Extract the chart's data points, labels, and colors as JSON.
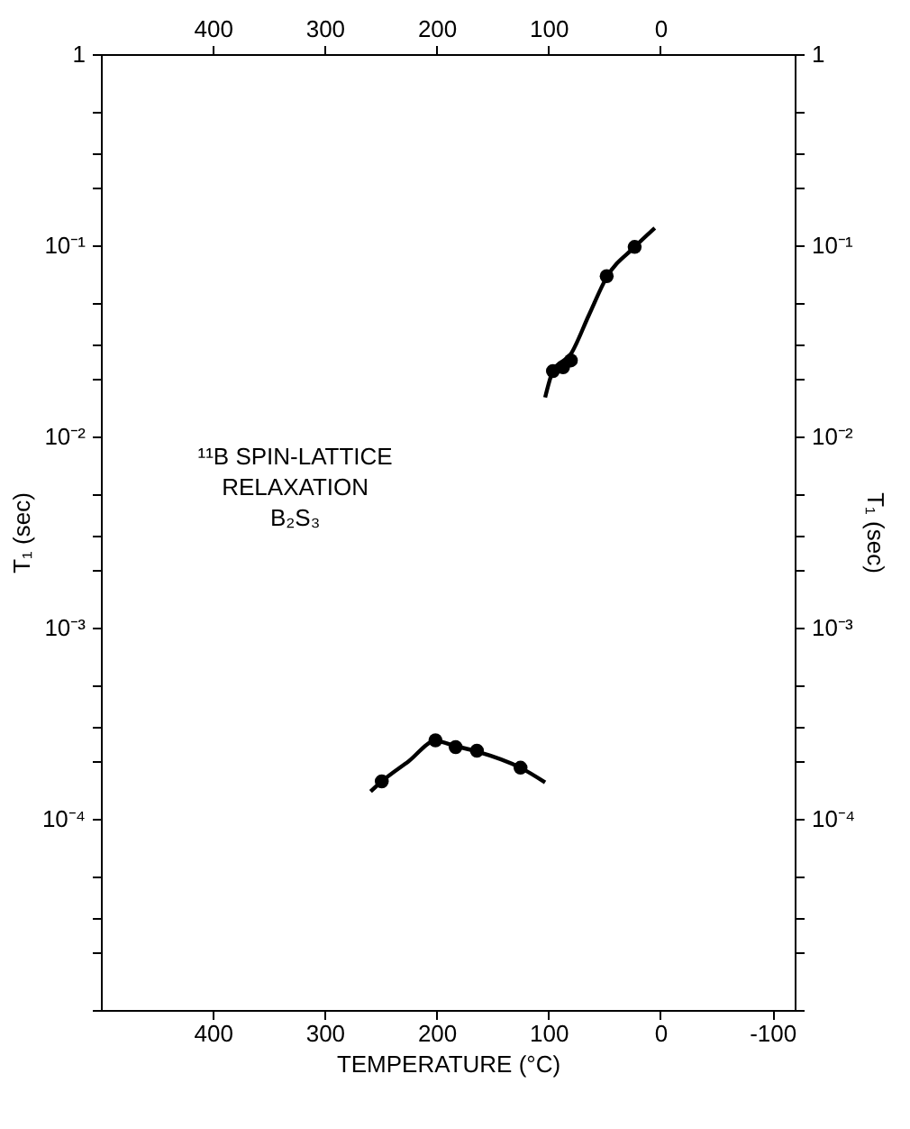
{
  "chart_data": {
    "type": "scatter",
    "xlabel": "TEMPERATURE (°C)",
    "ylabel": "T₁ (sec)",
    "y2label": "T₁ (sec)",
    "annotations": [
      "¹¹B SPIN-LATTICE\nRELAXATION\nB₂S₃"
    ],
    "xlim": [
      500,
      -120
    ],
    "xticks": [
      400,
      300,
      200,
      100,
      0,
      -100
    ],
    "x2lim": [
      500,
      -120
    ],
    "x2ticks": [
      400,
      300,
      200,
      100,
      0
    ],
    "log": "y",
    "ylim": [
      1e-05,
      1
    ],
    "yticks": [
      {
        "value": 1e-05,
        "label": null
      },
      {
        "value": 2e-05,
        "label": null
      },
      {
        "value": 3e-05,
        "label": null
      },
      {
        "value": 5e-05,
        "label": null
      },
      {
        "value": 0.0001,
        "label": "10⁻⁴"
      },
      {
        "value": 0.0002,
        "label": null
      },
      {
        "value": 0.0003,
        "label": null
      },
      {
        "value": 0.0005,
        "label": null
      },
      {
        "value": 0.001,
        "label": "10⁻³"
      },
      {
        "value": 0.002,
        "label": null
      },
      {
        "value": 0.003,
        "label": null
      },
      {
        "value": 0.005,
        "label": null
      },
      {
        "value": 0.01,
        "label": "10⁻²"
      },
      {
        "value": 0.02,
        "label": null
      },
      {
        "value": 0.03,
        "label": null
      },
      {
        "value": 0.05,
        "label": null
      },
      {
        "value": 0.1,
        "label": "10⁻¹"
      },
      {
        "value": 0.2,
        "label": null
      },
      {
        "value": 0.3,
        "label": null
      },
      {
        "value": 0.5,
        "label": null
      },
      {
        "value": 1,
        "label": "1"
      }
    ],
    "grid": false,
    "legend": false,
    "marker": "circle",
    "series": [
      {
        "type": "scatter",
        "color": "#000000",
        "x": [
          96,
          87,
          80,
          48,
          23
        ],
        "values": [
          0.022,
          0.023,
          0.025,
          0.069,
          0.098
        ]
      },
      {
        "type": "scatter",
        "color": "#000000",
        "x": [
          249,
          201,
          183,
          164,
          125
        ],
        "values": [
          0.000157,
          0.000257,
          0.000237,
          0.000227,
          0.000185
        ]
      },
      {
        "type": "line",
        "color": "#000000",
        "line_style": "solid",
        "marker": "none",
        "x": [
          103,
          96,
          80,
          64,
          48,
          23,
          5
        ],
        "values": [
          0.016,
          0.022,
          0.027,
          0.043,
          0.068,
          0.098,
          0.123
        ]
      },
      {
        "type": "line",
        "color": "#000000",
        "line_style": "solid",
        "marker": "none",
        "x": [
          259,
          249,
          225,
          201,
          183,
          164,
          125,
          103
        ],
        "values": [
          0.000139,
          0.000157,
          0.0002,
          0.000255,
          0.00024,
          0.000225,
          0.000185,
          0.000155
        ]
      }
    ]
  }
}
